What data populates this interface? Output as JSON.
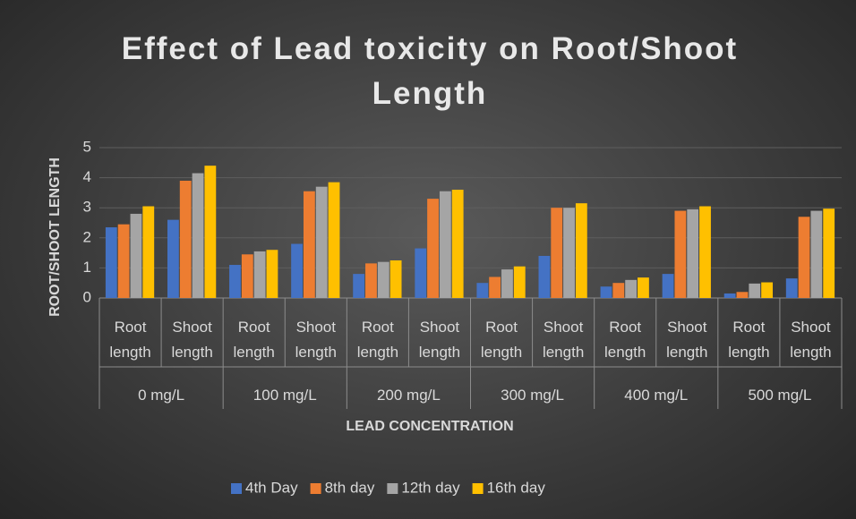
{
  "chart_data": {
    "type": "bar",
    "title": "Effect of Lead toxicity on Root/Shoot Length",
    "x_label": "LEAD CONCENTRATION",
    "y_label": "ROOT/SHOOT LENGTH",
    "categories": [
      "Root length",
      "Shoot length",
      "Root length",
      "Shoot length",
      "Root length",
      "Shoot length",
      "Root length",
      "Shoot length",
      "Root length",
      "Shoot length",
      "Root length",
      "Shoot length"
    ],
    "category_groups": [
      "0 mg/L",
      "100 mg/L",
      "200 mg/L",
      "300 mg/L",
      "400 mg/L",
      "500 mg/L"
    ],
    "series": [
      {
        "name": "4th Day",
        "color": "#4472c4",
        "values": [
          2.35,
          2.6,
          1.1,
          1.8,
          0.8,
          1.65,
          0.5,
          1.4,
          0.38,
          0.8,
          0.15,
          0.65
        ]
      },
      {
        "name": "8th day",
        "color": "#ed7d31",
        "values": [
          2.45,
          3.9,
          1.45,
          3.55,
          1.15,
          3.3,
          0.7,
          3.0,
          0.5,
          2.9,
          0.2,
          2.7
        ]
      },
      {
        "name": "12th day",
        "color": "#a5a5a5",
        "values": [
          2.8,
          4.15,
          1.55,
          3.7,
          1.2,
          3.55,
          0.95,
          3.0,
          0.6,
          2.95,
          0.48,
          2.9
        ]
      },
      {
        "name": "16th day",
        "color": "#ffc000",
        "values": [
          3.05,
          4.4,
          1.6,
          3.85,
          1.25,
          3.6,
          1.05,
          3.15,
          0.68,
          3.05,
          0.52,
          2.97
        ]
      }
    ],
    "ylim": [
      0,
      5
    ],
    "yticks": [
      0,
      1,
      2,
      3,
      4,
      5
    ],
    "grid": true,
    "legend": "bottom"
  }
}
